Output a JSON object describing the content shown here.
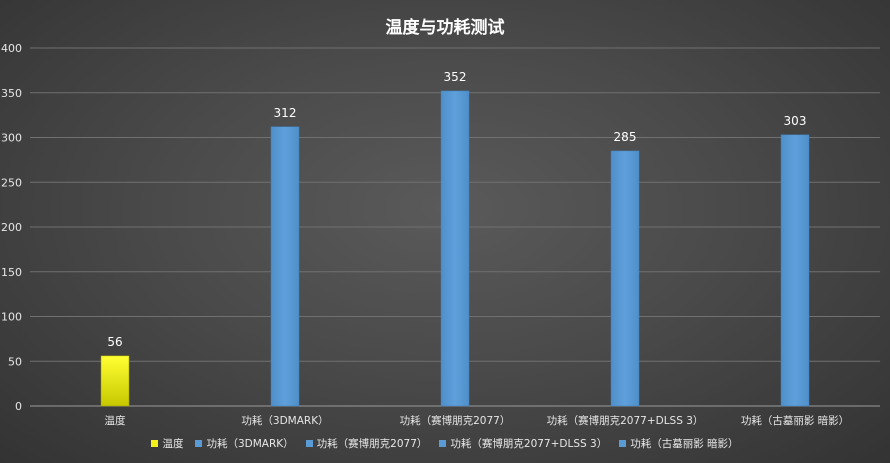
{
  "chart_data": {
    "type": "bar",
    "title": "温度与功耗测试",
    "categories": [
      "温度",
      "功耗（3DMARK）",
      "功耗（赛博朋克2077）",
      "功耗（赛博朋克2077+DLSS 3）",
      "功耗（古墓丽影 暗影）"
    ],
    "series": [
      {
        "name": "温度",
        "color": "#f2f21a",
        "values": [
          56,
          null,
          null,
          null,
          null
        ]
      },
      {
        "name": "功耗（3DMARK）",
        "color": "#5b9bd5",
        "values": [
          null,
          312,
          null,
          null,
          null
        ]
      },
      {
        "name": "功耗（赛博朋克2077）",
        "color": "#5b9bd5",
        "values": [
          null,
          null,
          352,
          null,
          null
        ]
      },
      {
        "name": "功耗（赛博朋克2077+DLSS 3）",
        "color": "#5b9bd5",
        "values": [
          null,
          null,
          null,
          285,
          null
        ]
      },
      {
        "name": "功耗（古墓丽影 暗影）",
        "color": "#5b9bd5",
        "values": [
          null,
          null,
          null,
          null,
          303
        ]
      }
    ],
    "ylim": [
      0,
      400
    ],
    "yticks": [
      0,
      50,
      100,
      150,
      200,
      250,
      300,
      350,
      400
    ],
    "grid": true,
    "legend_position": "bottom",
    "data_labels": true
  }
}
